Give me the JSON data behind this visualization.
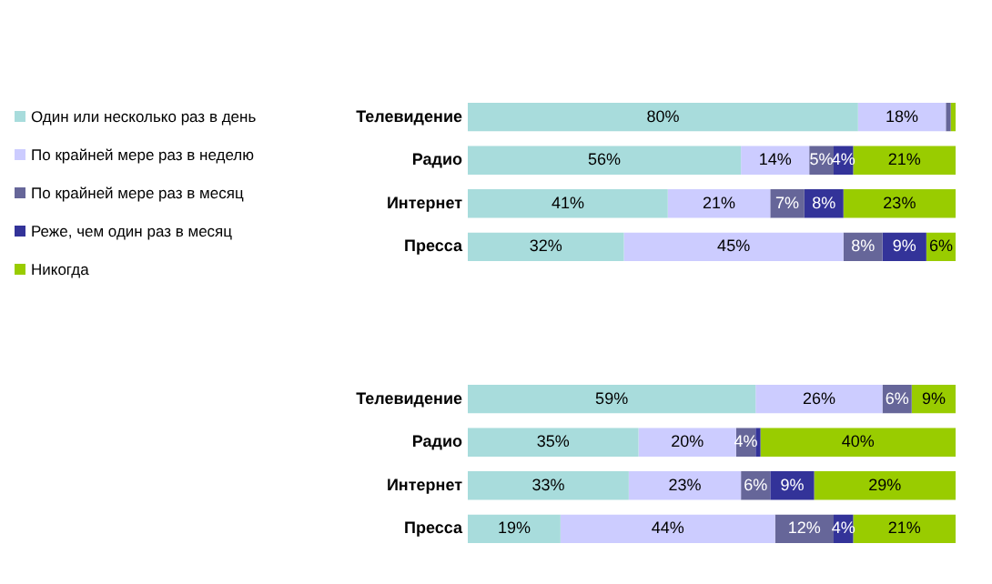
{
  "chart_data": [
    {
      "type": "bar",
      "orientation": "horizontal",
      "stacked": true,
      "categories": [
        "Телевидение",
        "Радио",
        "Интернет",
        "Пресса"
      ],
      "xlim": [
        0,
        100
      ],
      "tick_labels": "y",
      "grid": false,
      "legend": "left",
      "series": [
        {
          "name": "Один или несколько раз в день",
          "color": "#a8dcdc",
          "values": [
            80,
            56,
            41,
            32
          ],
          "value_labels": [
            "80%",
            "56%",
            "41%",
            "32%"
          ]
        },
        {
          "name": "По крайней мере раз в неделю",
          "color": "#ccccff",
          "values": [
            18,
            14,
            21,
            45
          ],
          "value_labels": [
            "18%",
            "14%",
            "21%",
            "45%"
          ]
        },
        {
          "name": "По крайней мере раз в месяц",
          "color": "#666699",
          "values": [
            1,
            5,
            7,
            8
          ],
          "value_labels": [
            null,
            "5%",
            "7%",
            "8%"
          ]
        },
        {
          "name": "Реже, чем один раз в месяц",
          "color": "#333399",
          "values": [
            0,
            4,
            8,
            9
          ],
          "value_labels": [
            null,
            "4%",
            "8%",
            "9%"
          ]
        },
        {
          "name": "Никогда",
          "color": "#99cc00",
          "values": [
            1,
            21,
            23,
            6
          ],
          "value_labels": [
            null,
            "21%",
            "23%",
            "6%"
          ]
        }
      ]
    },
    {
      "type": "bar",
      "orientation": "horizontal",
      "stacked": true,
      "categories": [
        "Телевидение",
        "Радио",
        "Интернет",
        "Пресса"
      ],
      "xlim": [
        0,
        100
      ],
      "tick_labels": "y",
      "grid": false,
      "legend": false,
      "series": [
        {
          "color": "#a8dcdc",
          "values": [
            59,
            35,
            33,
            19
          ],
          "value_labels": [
            "59%",
            "35%",
            "33%",
            "19%"
          ]
        },
        {
          "color": "#ccccff",
          "values": [
            26,
            20,
            23,
            44
          ],
          "value_labels": [
            "26%",
            "20%",
            "23%",
            "44%"
          ]
        },
        {
          "color": "#666699",
          "values": [
            6,
            4,
            6,
            12
          ],
          "value_labels": [
            "6%",
            "4%",
            "6%",
            "12%"
          ]
        },
        {
          "color": "#333399",
          "values": [
            0,
            1,
            9,
            4
          ],
          "value_labels": [
            null,
            null,
            "9%",
            "4%"
          ]
        },
        {
          "color": "#99cc00",
          "values": [
            9,
            40,
            29,
            21
          ],
          "value_labels": [
            "9%",
            "40%",
            "29%",
            "21%"
          ]
        }
      ]
    }
  ]
}
